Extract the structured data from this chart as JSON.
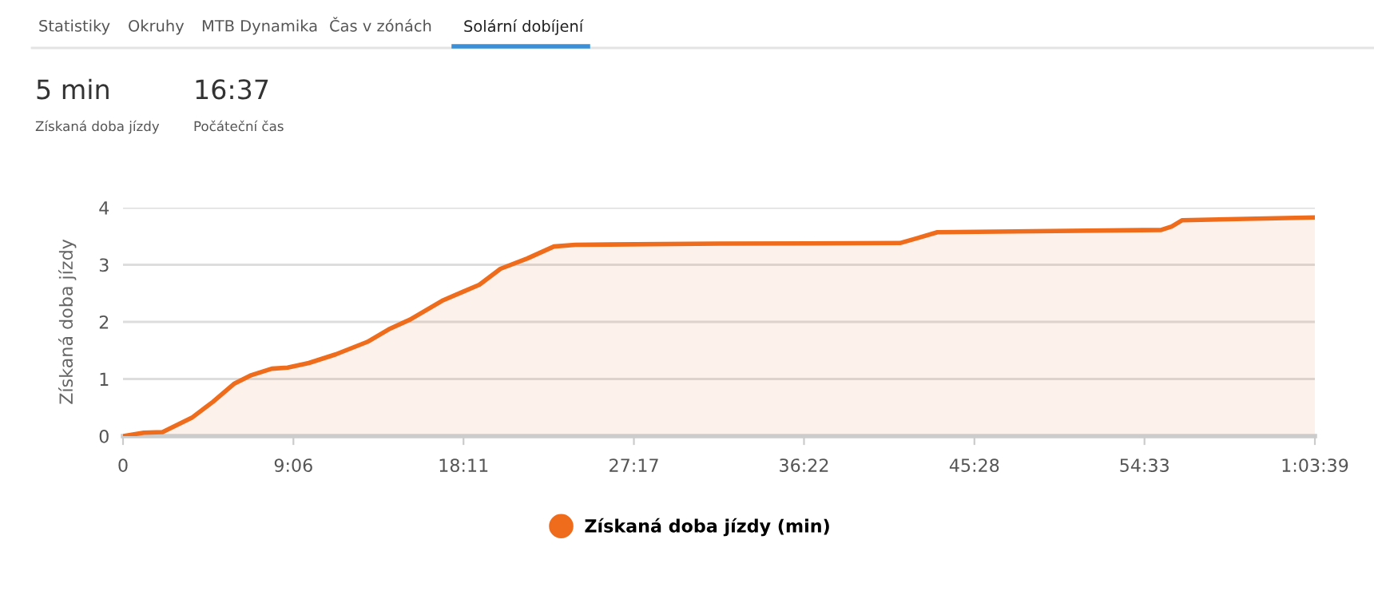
{
  "chart_data": {
    "type": "area",
    "ylabel": "Získaná doba jízdy",
    "annotations": [
      "Statistiky",
      "Okruhy",
      "MTB Dynamika",
      "Čas v zónách",
      "Solární dobíjení",
      "5 min",
      "Získaná doba jízdy",
      "16:37",
      "Počáteční čas"
    ],
    "x": [
      0,
      1.11,
      2.11,
      3.67,
      4.8,
      5.95,
      6.8,
      7.94,
      8.79,
      9.92,
      11.35,
      13.05,
      14.19,
      15.33,
      17.04,
      18.17,
      19.03,
      20.16,
      21.59,
      23.01,
      24.15,
      31.83,
      41.49,
      42.35,
      43.49,
      55.44,
      56.0,
      56.57,
      63.65
    ],
    "series": [
      {
        "name": "Získaná doba jízdy (min)",
        "color": "#ee6c1c",
        "values": [
          0,
          0.06,
          0.07,
          0.32,
          0.6,
          0.92,
          1.06,
          1.18,
          1.2,
          1.28,
          1.43,
          1.65,
          1.87,
          2.04,
          2.37,
          2.53,
          2.65,
          2.93,
          3.11,
          3.32,
          3.35,
          3.37,
          3.38,
          3.46,
          3.57,
          3.61,
          3.67,
          3.78,
          3.83
        ]
      }
    ],
    "xlim": [
      0,
      63.65
    ],
    "xticks": [
      {
        "value": 0,
        "label": "0"
      },
      {
        "value": 9.1,
        "label": "9:06"
      },
      {
        "value": 18.183,
        "label": "18:11"
      },
      {
        "value": 27.283,
        "label": "27:17"
      },
      {
        "value": 36.367,
        "label": "36:22"
      },
      {
        "value": 45.467,
        "label": "45:28"
      },
      {
        "value": 54.55,
        "label": "54:33"
      },
      {
        "value": 63.65,
        "label": "1:03:39"
      }
    ],
    "ylim": [
      0,
      4
    ],
    "yticks": [
      0,
      1,
      2,
      3,
      4
    ],
    "grid": "y",
    "legend": "bottom",
    "marker": "none",
    "line_style": "solid"
  }
}
